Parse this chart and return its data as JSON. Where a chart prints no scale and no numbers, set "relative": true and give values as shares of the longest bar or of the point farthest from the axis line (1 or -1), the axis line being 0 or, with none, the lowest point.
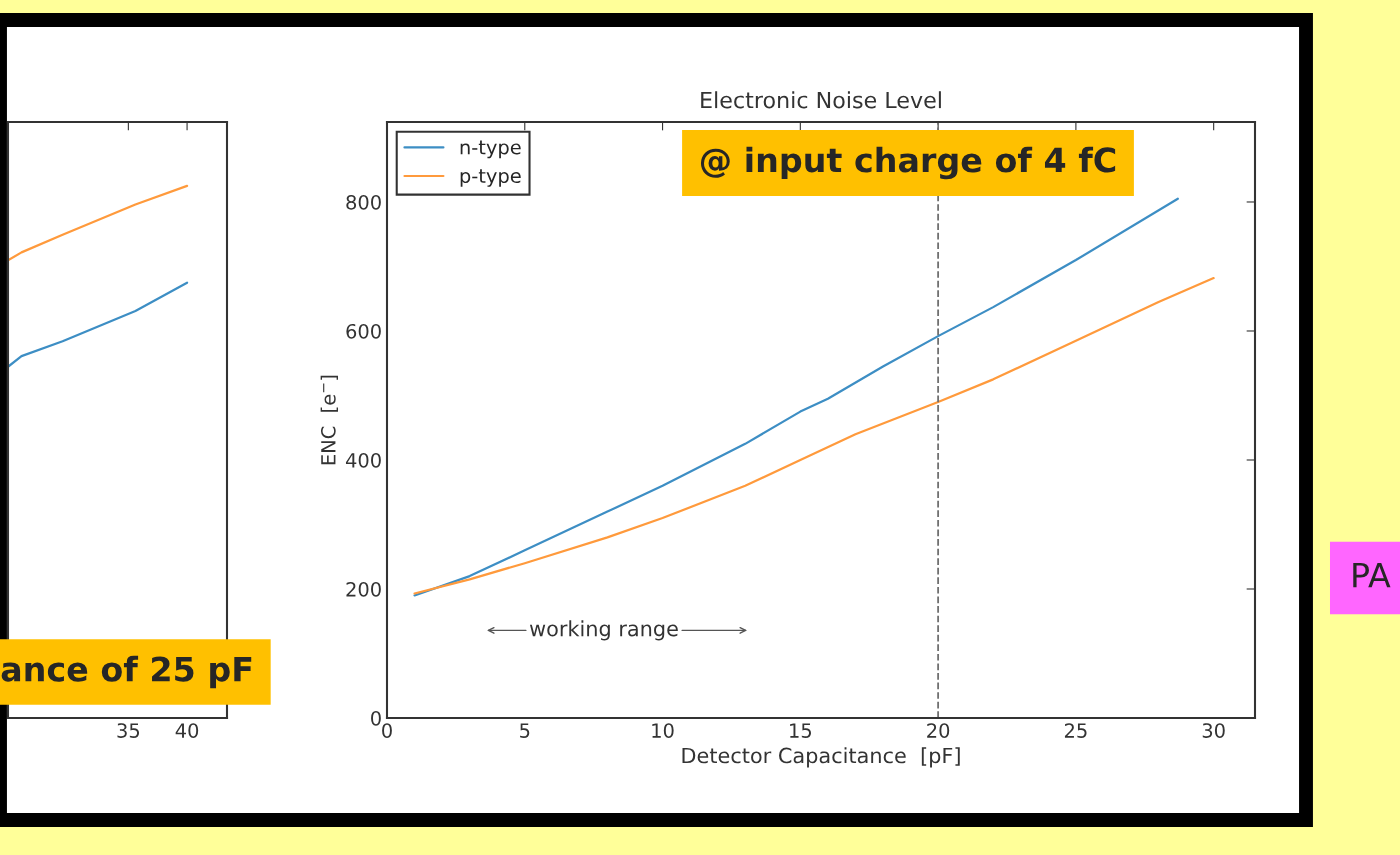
{
  "chart_data": [
    {
      "type": "line",
      "relative": true,
      "x": [
        24.75,
        25.9,
        29.4,
        35.6,
        40.0
      ],
      "xlim": [
        24.75,
        43.4
      ],
      "xticks": [
        35,
        40
      ],
      "tick_labels": "x",
      "grid": false,
      "legend": false,
      "series": [
        {
          "color": "#ff9a3c",
          "values": [
            0.86,
            0.875,
            0.908,
            0.965,
            1.0
          ]
        },
        {
          "color": "#3d8ec4",
          "values": [
            0.66,
            0.68,
            0.708,
            0.765,
            0.818
          ]
        }
      ],
      "annotations": [
        "ance of 25 pF"
      ]
    },
    {
      "type": "line",
      "title": "Electronic Noise Level",
      "xlabel": "Detector Capacitance  [pF]",
      "ylabel": "ENC  [e$^{−}$]",
      "xlim": [
        0,
        31.5
      ],
      "xticks": [
        0,
        5,
        10,
        15,
        20,
        25,
        30
      ],
      "ylim": [
        0,
        924
      ],
      "yticks": [
        0,
        200,
        400,
        600,
        800
      ],
      "grid": false,
      "legend": "top left",
      "series": [
        {
          "name": "n-type",
          "color": "#3d8ec4",
          "x": [
            1,
            3,
            5,
            8,
            10,
            13,
            15,
            16,
            18,
            20,
            22,
            25,
            28.7
          ],
          "values": [
            190,
            220,
            260,
            320,
            360,
            425,
            475,
            495,
            545,
            592,
            637,
            710,
            805
          ]
        },
        {
          "name": "p-type",
          "color": "#ff9a3c",
          "x": [
            1,
            3,
            5,
            8,
            10,
            13,
            15,
            17,
            20,
            22,
            25,
            28,
            30
          ],
          "values": [
            193,
            215,
            240,
            280,
            310,
            360,
            400,
            440,
            490,
            525,
            585,
            645,
            682
          ]
        }
      ],
      "ref_lines": [
        {
          "axis": "x",
          "value": 20,
          "color": "#707070",
          "line_style": "dashed"
        }
      ],
      "annotations": [
        "working range",
        "@ input charge of 4 fC",
        "PA"
      ]
    }
  ]
}
